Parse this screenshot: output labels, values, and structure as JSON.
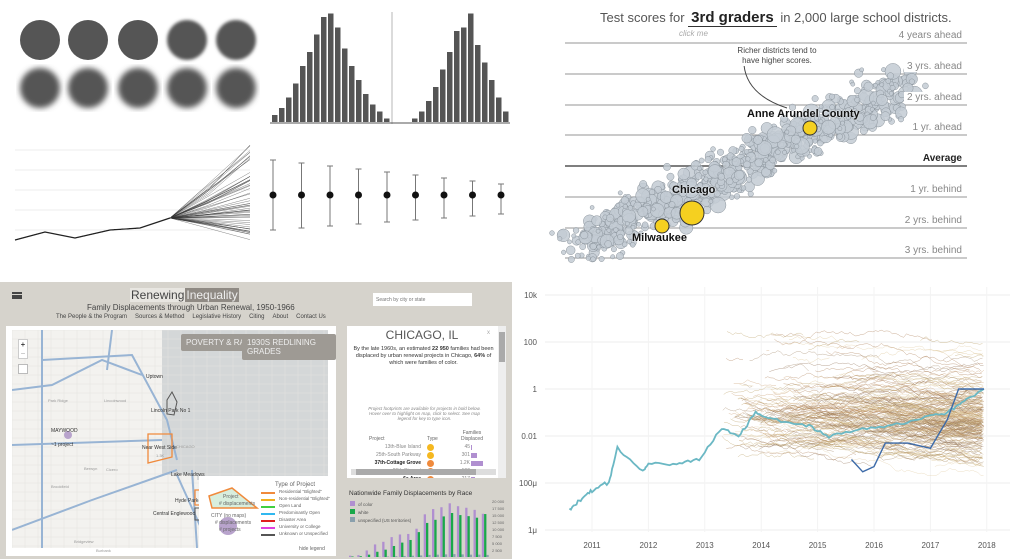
{
  "colors": {
    "scatter_point": "#c3cbd3",
    "highlight": "#f5d020",
    "grid": "#999",
    "map_bg": "#d6d3cc",
    "of_color": "#b08fd0",
    "white": "#19a84a",
    "unspecified": "#8aa0ad",
    "main_line": "#6bb8c4",
    "dark_line": "#3c6aa8"
  },
  "scores": {
    "title_pre": "Test scores for",
    "title_grade": "3rd graders",
    "title_post": "in 2,000 large school districts.",
    "click_hint": "click me",
    "annotation": "Richer districts tend to have higher scores.",
    "levels": [
      "4 years ahead",
      "3 yrs. ahead",
      "2 yrs. ahead",
      "1 yr. ahead",
      "Average",
      "1 yr. behind",
      "2 yrs. behind",
      "3 yrs. behind"
    ],
    "highlights": [
      "Anne Arundel County",
      "Chicago",
      "Milwaukee"
    ]
  },
  "app": {
    "title_a": "Renewing",
    "title_b": "Inequality",
    "subtitle": "Family Displacements through Urban Renewal, 1950-1966",
    "nav": [
      "The People & the Program",
      "Sources & Method",
      "Legislative History",
      "Citing",
      "About",
      "Contact Us"
    ],
    "search_placeholder": "Search by city or state",
    "map_buttons": [
      "POVERTY & RACE",
      "1930S REDLINING GRADES"
    ],
    "zoom_in": "+",
    "zoom_out": "−",
    "places": [
      "Park Ridge",
      "Lincolnwood",
      "Uptown",
      "Lincoln Park No 1",
      "Franklin Park",
      "Northlake",
      "Elmwood Park",
      "MAYWOOD",
      "~1 project",
      "Near West Side",
      "1.3K",
      "CHICAGO",
      "Berwyn",
      "Cicero",
      "Lake Meadows",
      "Brookfield",
      "Hyde Park-Kenwood",
      "Central Englewood",
      "Bridgeview",
      "Burbank"
    ],
    "legend_title": "Type of Project",
    "legend_project": "Project",
    "legend_displacements": "# displacements",
    "legend_city": "CITY (no maps)",
    "legend_city_disp": "# displacements",
    "legend_city_proj": "# projects",
    "legend_items": [
      {
        "label": "Residential \"Blighted\"",
        "color": "#f08a3c"
      },
      {
        "label": "Non-residential \"Blighted\"",
        "color": "#f0b020"
      },
      {
        "label": "Open Land",
        "color": "#40d040"
      },
      {
        "label": "Predominantly Open",
        "color": "#30b8f0"
      },
      {
        "label": "Disaster Area",
        "color": "#e02020"
      },
      {
        "label": "University or College",
        "color": "#e040e0"
      },
      {
        "label": "Unknown or Unspecified",
        "color": "#555555"
      }
    ],
    "hide_legend": "hide legend",
    "city": "CHICAGO, IL",
    "close": "x",
    "summary_a": "By the late 1960s, an estimated",
    "families": "22 950",
    "summary_b": "families had been displaced by urban renewal projects in Chicago,",
    "pct": "64%",
    "summary_c": "of which were families of color.",
    "footprint_note": "Project footprints are available for projects in bold below. Hover over to highlight on map, click to select. See map legend for key to type icon.",
    "col_project": "Project",
    "col_type": "Type",
    "col_families": "Families Displaced",
    "projects": [
      {
        "name": "13th-Blue Island",
        "color": "#f5b820",
        "value": "45",
        "bold": false
      },
      {
        "name": "25th-South Parkway",
        "color": "#f5b820",
        "value": "301",
        "bold": false
      },
      {
        "name": "37th-Cottage Grove",
        "color": "#f08a3c",
        "value": "1.2K",
        "bold": true
      },
      {
        "name": "69th-Stewart",
        "color": "#f08a3c",
        "value": "100",
        "bold": false
      },
      {
        "name": "6a Area",
        "color": "#f08a3c",
        "value": "217",
        "bold": true
      },
      {
        "name": "Ch. South Central",
        "color": "#f08a3c",
        "value": "180",
        "bold": false
      }
    ],
    "race_title": "Nationwide Family Displacements by Race",
    "race_legend": [
      "of color",
      "white",
      "unspecified (US territories)"
    ],
    "race_yticks": [
      "20 000",
      "17 500",
      "15 000",
      "12 500",
      "10 000",
      "7 500",
      "5 000",
      "2 500"
    ],
    "race_xticks": [
      "'50",
      "'55",
      "'60",
      "'65"
    ],
    "all_years": "All Years"
  },
  "chart_data": [
    {
      "type": "scatter",
      "title": "Test scores for 3rd graders in 2,000 large school districts.",
      "ylabel": "",
      "y_levels": [
        "4 years ahead",
        "3 yrs. ahead",
        "2 yrs. ahead",
        "1 yr. ahead",
        "Average",
        "1 yr. behind",
        "2 yrs. behind",
        "3 yrs. behind"
      ],
      "highlighted": [
        {
          "name": "Anne Arundel County",
          "grade_levels": 1.2
        },
        {
          "name": "Chicago",
          "grade_levels": -1.5
        },
        {
          "name": "Milwaukee",
          "grade_levels": -2.0
        }
      ]
    },
    {
      "type": "bar",
      "title": "",
      "values": [
        2,
        4,
        7,
        11,
        16,
        20,
        25,
        30,
        31,
        27,
        21,
        16,
        12,
        8,
        5,
        3,
        1,
        0,
        0,
        0,
        1,
        3,
        6,
        10,
        15,
        20,
        26,
        27,
        31,
        22,
        17,
        12,
        7,
        3
      ],
      "ylim": [
        0,
        32
      ]
    },
    {
      "type": "line",
      "title": "",
      "yscale": "log",
      "ytick_labels": [
        "10k",
        "100",
        "1",
        "0.01",
        "100μ",
        "1μ"
      ],
      "xtick_labels": [
        "2011",
        "2012",
        "2013",
        "2014",
        "2015",
        "2016",
        "2017",
        "2018"
      ],
      "grid": true,
      "series": [
        {
          "values_x": [
            2010.6,
            2010.8,
            2011.0,
            2011.3,
            2011.45,
            2011.9,
            2012.0,
            2012.5,
            2012.9,
            2013.3,
            2013.6,
            2013.9,
            2014.2,
            2014.8,
            2015.2,
            2015.8,
            2016.4,
            2016.9,
            2017.3,
            2017.6,
            2017.95
          ],
          "values_y": [
            8e-06,
            2e-05,
            5e-05,
            0.0001,
            0.003,
            0.0003,
            0.0007,
            0.0006,
            0.001,
            0.02,
            0.01,
            0.1,
            0.05,
            0.03,
            0.01,
            0.02,
            0.03,
            0.06,
            0.1,
            0.3,
            1
          ]
        }
      ]
    },
    {
      "type": "bar",
      "title": "Nationwide Family Displacements by Race",
      "categories": [
        "1950",
        "1951",
        "1952",
        "1953",
        "1954",
        "1955",
        "1956",
        "1957",
        "1958",
        "1959",
        "1960",
        "1961",
        "1962",
        "1963",
        "1964",
        "1965",
        "1966"
      ],
      "series": [
        {
          "name": "of color",
          "values": [
            500,
            700,
            2500,
            4800,
            5800,
            7600,
            8600,
            8800,
            10800,
            16300,
            18300,
            19000,
            20500,
            19400,
            18800,
            18000,
            16500
          ]
        },
        {
          "name": "white",
          "values": [
            200,
            300,
            900,
            2000,
            2800,
            4200,
            5500,
            6500,
            9500,
            13000,
            14200,
            15500,
            16800,
            16000,
            15600,
            15000,
            16400
          ]
        },
        {
          "name": "unspecified (US territories)",
          "values": [
            0,
            0,
            0,
            100,
            200,
            300,
            400,
            500,
            600,
            800,
            900,
            1000,
            1100,
            1000,
            900,
            900,
            800
          ]
        }
      ],
      "ylim": [
        0,
        21000
      ]
    }
  ]
}
